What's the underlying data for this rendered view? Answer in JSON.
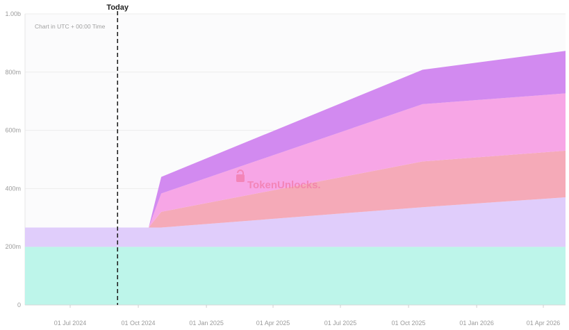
{
  "chart_data": {
    "type": "area",
    "stacked": true,
    "title": "",
    "note": "Chart in UTC + 00:00 Time",
    "watermark": "TokenUnlocks.",
    "marker": {
      "label": "Today",
      "x": "2024-09-03"
    },
    "y_ticks": [
      "0",
      "200m",
      "400m",
      "600m",
      "800m",
      "1.00b"
    ],
    "y_tick_values": [
      0,
      200,
      400,
      600,
      800,
      1000
    ],
    "ylim": [
      0,
      1000
    ],
    "y_unit": "m",
    "x_ticks": [
      "01 Jul 2024",
      "01 Oct 2024",
      "01 Jan 2025",
      "01 Apr 2025",
      "01 Jul 2025",
      "01 Oct 2025",
      "01 Jan 2026",
      "01 Apr 2026"
    ],
    "x_tick_dates": [
      "2024-07-01",
      "2024-10-01",
      "2025-01-01",
      "2025-04-01",
      "2025-07-01",
      "2025-10-01",
      "2026-01-01",
      "2026-04-01"
    ],
    "xlim": [
      "2024-05-01",
      "2026-05-01"
    ],
    "grid": true,
    "x": [
      "2024-05-01",
      "2024-10-15",
      "2024-11-01",
      "2025-10-20",
      "2026-05-01"
    ],
    "series": [
      {
        "color": "#bdf5ea",
        "values": [
          200,
          200,
          200,
          200,
          200
        ]
      },
      {
        "color": "#e0cdfb",
        "values": [
          66,
          66,
          66,
          136,
          170
        ]
      },
      {
        "color": "#f5aab8",
        "values": [
          0,
          0,
          54,
          157,
          160
        ]
      },
      {
        "color": "#f7a6e6",
        "values": [
          0,
          0,
          63,
          197,
          197
        ]
      },
      {
        "color": "#d28af0",
        "values": [
          0,
          0,
          57,
          118,
          146
        ]
      }
    ]
  }
}
